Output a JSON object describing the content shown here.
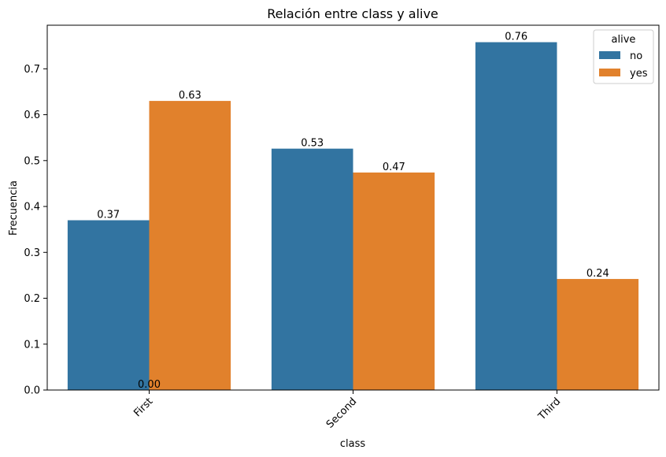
{
  "chart_data": {
    "type": "bar",
    "title": "Relación entre class y alive",
    "xlabel": "class",
    "ylabel": "Frecuencia",
    "categories": [
      "First",
      "Second",
      "Third"
    ],
    "series": [
      {
        "name": "no",
        "color": "#3274a1",
        "values": [
          0.37,
          0.526,
          0.758
        ],
        "labels": [
          "0.37",
          "0.53",
          "0.76"
        ]
      },
      {
        "name": "yes",
        "color": "#e1812c",
        "values": [
          0.63,
          0.474,
          0.242
        ],
        "labels": [
          "0.63",
          "0.47",
          "0.24"
        ]
      }
    ],
    "extra_annotation": {
      "category": "First",
      "text": "0.00"
    },
    "ylim": [
      0,
      0.795
    ],
    "yticks": [
      0.0,
      0.1,
      0.2,
      0.3,
      0.4,
      0.5,
      0.6,
      0.7
    ],
    "ytick_labels": [
      "0.0",
      "0.1",
      "0.2",
      "0.3",
      "0.4",
      "0.5",
      "0.6",
      "0.7"
    ],
    "xtick_rotation": 45,
    "grid": false,
    "legend": {
      "title": "alive",
      "placement": "top-right"
    }
  }
}
